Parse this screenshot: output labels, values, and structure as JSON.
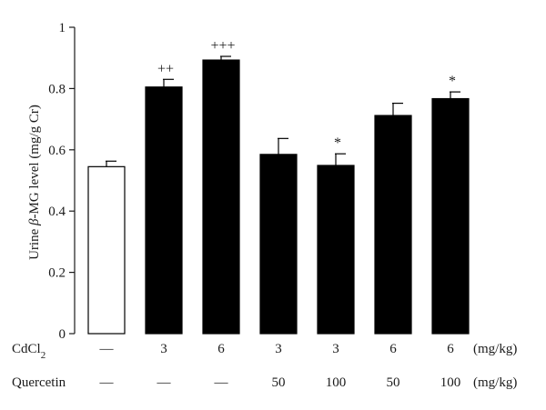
{
  "chart_data": {
    "type": "bar",
    "ylabel_parts": [
      "Urine ",
      "β",
      "-MG level (mg/g Cr)"
    ],
    "ylim": [
      0,
      1
    ],
    "yticks": [
      "0",
      "0.2",
      "0.4",
      "0.6",
      "0.8",
      "1"
    ],
    "ytick_values": [
      0,
      0.2,
      0.4,
      0.6,
      0.8,
      1
    ],
    "values": [
      0.545,
      0.805,
      0.893,
      0.585,
      0.549,
      0.712,
      0.767
    ],
    "errors": [
      0.018,
      0.025,
      0.012,
      0.052,
      0.038,
      0.04,
      0.022
    ],
    "fills": [
      "#ffffff",
      "#000000",
      "#000000",
      "#000000",
      "#000000",
      "#000000",
      "#000000"
    ],
    "annotations": [
      "",
      "++",
      "+++",
      "",
      "*",
      "",
      "*"
    ],
    "rows": [
      {
        "label_main": "CdCl",
        "label_sub": "2",
        "values": [
          "—",
          "3",
          "6",
          "3",
          "3",
          "6",
          "6"
        ],
        "unit": "(mg/kg)"
      },
      {
        "label_main": "Quercetin",
        "label_sub": "",
        "values": [
          "—",
          "—",
          "—",
          "50",
          "100",
          "50",
          "100"
        ],
        "unit": "(mg/kg)"
      }
    ],
    "grid": false
  }
}
